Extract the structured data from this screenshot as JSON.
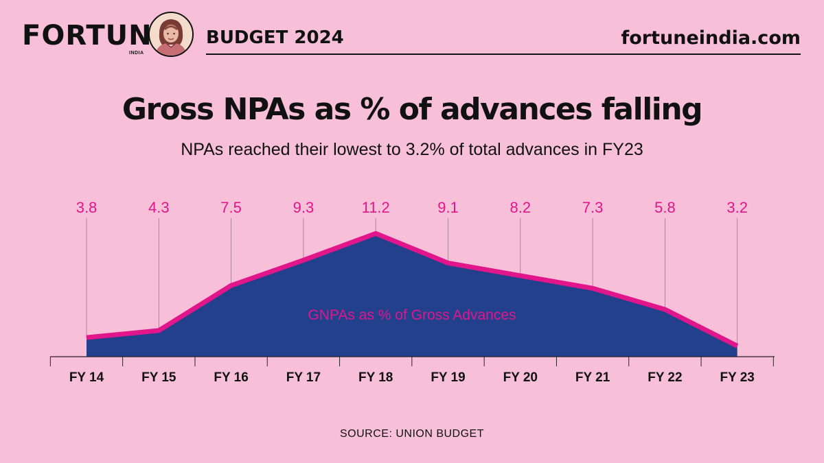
{
  "header": {
    "brand": "FORTUNE",
    "brand_sub": "INDIA",
    "edition": "BUDGET 2024",
    "site": "fortuneindia.com"
  },
  "title": "Gross NPAs as % of advances falling",
  "subtitle": "NPAs reached their lowest to 3.2% of total advances in FY23",
  "source": "SOURCE: UNION BUDGET",
  "colors": {
    "background": "#f7bfd8",
    "area": "#22408c",
    "line": "#e0168a",
    "label": "#e0168a",
    "text": "#111111"
  },
  "chart_data": {
    "type": "area",
    "title": "Gross NPAs as % of advances falling",
    "series": [
      {
        "name": "GNPAs as % of Gross Advances",
        "values": [
          3.8,
          4.3,
          7.5,
          9.3,
          11.2,
          9.1,
          8.2,
          7.3,
          5.8,
          3.2
        ]
      }
    ],
    "categories": [
      "FY 14",
      "FY 15",
      "FY 16",
      "FY 17",
      "FY 18",
      "FY 19",
      "FY 20",
      "FY 21",
      "FY 22",
      "FY 23"
    ],
    "value_labels": [
      "3.8",
      "4.3",
      "7.5",
      "9.3",
      "11.2",
      "9.1",
      "8.2",
      "7.3",
      "5.8",
      "3.2"
    ],
    "xlabel": "",
    "ylabel": "",
    "ylim": [
      0,
      12
    ],
    "grid": false,
    "legend": "inside-center"
  }
}
